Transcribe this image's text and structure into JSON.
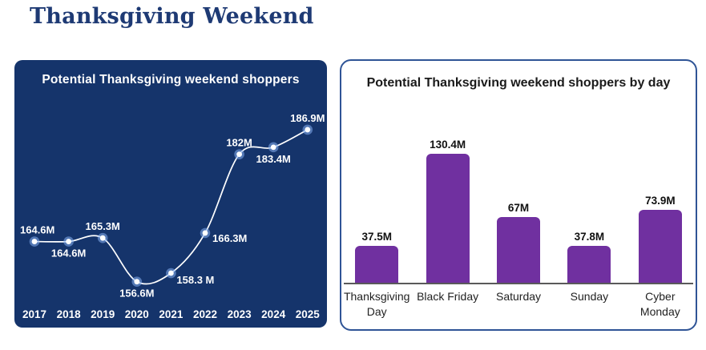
{
  "page": {
    "title": "Thanksgiving Weekend"
  },
  "colors": {
    "page_title": "#1e3a74",
    "line_panel_bg": "#15346b",
    "bar_panel_border": "#2f5496",
    "line_stroke": "#ffffff",
    "dot_fill": "#ffffff",
    "dot_halo": "#86b1f2",
    "bar_fill": "#7030a0",
    "axis_line": "#5a5a5a",
    "bar_title_color": "#1a1a1a"
  },
  "chart_data": [
    {
      "type": "line",
      "title": "Potential Thanksgiving weekend shoppers",
      "x": [
        "2017",
        "2018",
        "2019",
        "2020",
        "2021",
        "2022",
        "2023",
        "2024",
        "2025"
      ],
      "values": [
        164.6,
        164.6,
        165.3,
        156.6,
        158.3,
        166.3,
        182,
        183.4,
        186.9
      ],
      "labels": [
        "164.6M",
        "164.6M",
        "165.3M",
        "156.6M",
        "158.3 M",
        "166.3M",
        "182M",
        "183.4M",
        "186.9M"
      ],
      "label_placement": [
        "above-right",
        "below",
        "above",
        "below",
        "below-right",
        "right",
        "above",
        "below",
        "above"
      ],
      "xlabel": "",
      "ylabel": "",
      "ylim": [
        150,
        192
      ],
      "grid": false,
      "legend": "none"
    },
    {
      "type": "bar",
      "title": "Potential Thanksgiving weekend shoppers by day",
      "categories": [
        "Thanksgiving Day",
        "Black Friday",
        "Saturday",
        "Sunday",
        "Cyber Monday"
      ],
      "category_lines": [
        [
          "Thanksgiving",
          "Day"
        ],
        [
          "Black Friday"
        ],
        [
          "Saturday"
        ],
        [
          "Sunday"
        ],
        [
          "Cyber",
          "Monday"
        ]
      ],
      "values": [
        37.5,
        130.4,
        67,
        37.8,
        73.9
      ],
      "labels": [
        "37.5M",
        "130.4M",
        "67M",
        "37.8M",
        "73.9M"
      ],
      "xlabel": "",
      "ylabel": "",
      "ylim": [
        0,
        145
      ],
      "grid": false,
      "legend": "none"
    }
  ]
}
